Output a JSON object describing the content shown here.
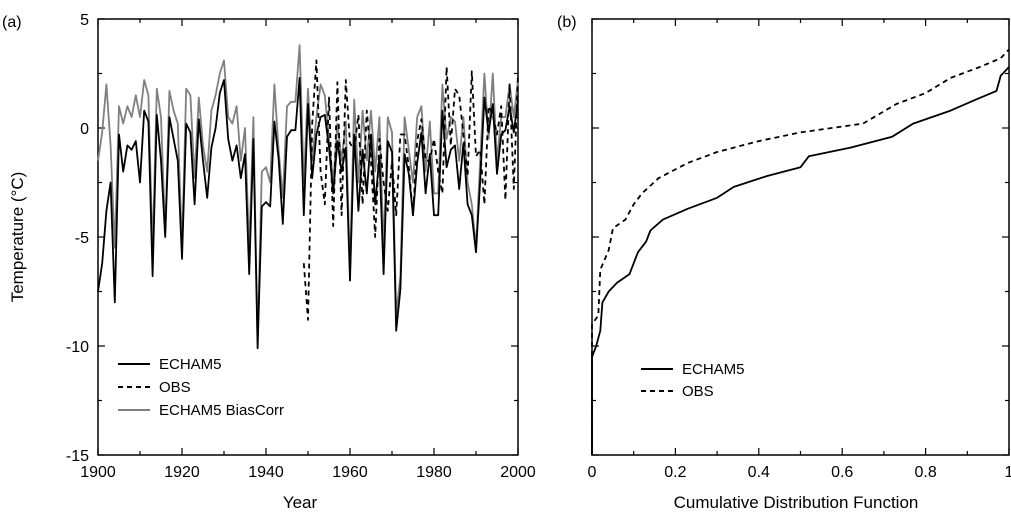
{
  "chart_data": [
    {
      "panel_label": "(a)",
      "type": "line",
      "xlabel": "Year",
      "ylabel": "Temperature (°C)",
      "xlim": [
        1900,
        2000
      ],
      "ylim": [
        -15,
        5
      ],
      "x_ticks": [
        1900,
        1920,
        1940,
        1960,
        1980,
        2000
      ],
      "y_ticks": [
        5,
        0,
        -5,
        -10,
        -15
      ],
      "grid": false,
      "legend_position": "bottom-left",
      "x": [
        1900,
        1901,
        1902,
        1903,
        1904,
        1905,
        1906,
        1907,
        1908,
        1909,
        1910,
        1911,
        1912,
        1913,
        1914,
        1915,
        1916,
        1917,
        1918,
        1919,
        1920,
        1921,
        1922,
        1923,
        1924,
        1925,
        1926,
        1927,
        1928,
        1929,
        1930,
        1931,
        1932,
        1933,
        1934,
        1935,
        1936,
        1937,
        1938,
        1939,
        1940,
        1941,
        1942,
        1943,
        1944,
        1945,
        1946,
        1947,
        1948,
        1949,
        1950,
        1951,
        1952,
        1953,
        1954,
        1955,
        1956,
        1957,
        1958,
        1959,
        1960,
        1961,
        1962,
        1963,
        1964,
        1965,
        1966,
        1967,
        1968,
        1969,
        1970,
        1971,
        1972,
        1973,
        1974,
        1975,
        1976,
        1977,
        1978,
        1979,
        1980,
        1981,
        1982,
        1983,
        1984,
        1985,
        1986,
        1987,
        1988,
        1989,
        1990,
        1991,
        1992,
        1993,
        1994,
        1995,
        1996,
        1997,
        1998,
        1999,
        2000
      ],
      "series": [
        {
          "name": "ECHAM5",
          "color": "#000000",
          "dash": "solid",
          "values": [
            -7.5,
            -6.2,
            -3.8,
            -2.5,
            -8.0,
            -0.3,
            -2.0,
            -0.8,
            -1.0,
            -0.6,
            -2.5,
            0.8,
            0.3,
            -6.8,
            0.6,
            -1.5,
            -5.0,
            0.5,
            -0.5,
            -1.5,
            -6.0,
            0.2,
            -0.2,
            -3.5,
            0.4,
            -1.5,
            -3.2,
            -0.9,
            0.0,
            1.6,
            2.2,
            -0.5,
            -1.5,
            -0.8,
            -2.3,
            -1.2,
            -6.7,
            -0.5,
            -10.1,
            -3.6,
            -3.4,
            -3.6,
            0.3,
            -1.4,
            -4.4,
            -0.4,
            -0.1,
            -0.1,
            2.3,
            -4.0,
            1.1,
            -2.3,
            -0.3,
            0.5,
            0.6,
            -0.9,
            -3.0,
            -0.6,
            -2.0,
            -0.9,
            -7.0,
            -0.3,
            -3.8,
            -1.0,
            -3.0,
            -0.3,
            -3.5,
            -1.3,
            -6.7,
            -0.6,
            -1.1,
            -9.3,
            -7.4,
            -1.2,
            -2.1,
            -4.0,
            -1.6,
            -0.2,
            -3.0,
            -1.2,
            -4.0,
            -4.0,
            0.8,
            -1.8,
            -1.0,
            -0.8,
            -2.8,
            -0.7,
            -3.5,
            -4.0,
            -5.7,
            -2.4,
            -0.8,
            -1.7,
            0.8,
            -2.6,
            -2.1,
            2.1,
            -3.2,
            -4.0,
            -1.5
          ],
          "values_b": [
            1.4,
            -0.2,
            1.1,
            -2.1,
            -0.3,
            -0.1,
            1.0,
            -0.2,
            1.3
          ]
        },
        {
          "name": "OBS",
          "color": "#000000",
          "dash": "dashed",
          "values": [
            null,
            null,
            null,
            null,
            null,
            null,
            null,
            null,
            null,
            null,
            null,
            null,
            null,
            null,
            null,
            null,
            null,
            null,
            null,
            null,
            null,
            null,
            null,
            null,
            null,
            null,
            null,
            null,
            null,
            null,
            null,
            null,
            null,
            null,
            null,
            null,
            null,
            null,
            null,
            null,
            null,
            null,
            null,
            null,
            null,
            null,
            null,
            null,
            null,
            -6.2,
            -8.8,
            0.2,
            3.1,
            -2.0,
            -3.5,
            1.4,
            -4.5,
            2.1,
            -4.0,
            2.2,
            -0.7,
            -1.0,
            0.6,
            -3.5,
            0.8,
            -1.5,
            -5.0,
            -0.5,
            -2.5,
            -3.8,
            -1.5,
            -4.0,
            -0.3,
            -0.3,
            -1.8,
            -4.0,
            -0.6,
            0.4,
            -1.5,
            -1.5,
            -0.5,
            -2.0,
            -3.0,
            2.8,
            -0.8,
            1.8,
            1.5,
            -0.3,
            -2.2,
            2.6,
            -1.3,
            -1.0,
            -3.5,
            1.0,
            0.6,
            -0.3,
            1.0,
            -3.3,
            2.0,
            -2.8,
            2.5
          ]
        },
        {
          "name": "ECHAM5 BiasCorr",
          "color": "#808080",
          "dash": "solid",
          "values": [
            -1.5,
            -0.2,
            2.0,
            -0.8,
            -5.5,
            1.0,
            0.2,
            1.0,
            0.5,
            1.5,
            0.5,
            2.2,
            1.5,
            -5.7,
            1.8,
            0.5,
            -4.8,
            1.7,
            0.8,
            0.2,
            -5.5,
            1.8,
            1.5,
            -2.3,
            1.4,
            -0.8,
            -2.0,
            0.8,
            1.5,
            2.5,
            3.1,
            0.5,
            0.2,
            1.0,
            -1.5,
            0.0,
            -5.5,
            0.5,
            -9.8,
            -2.0,
            -1.8,
            -2.5,
            2.0,
            -1.0,
            -3.2,
            1.0,
            1.2,
            1.2,
            3.8,
            -2.5,
            1.8,
            -1.5,
            0.5,
            2.0,
            1.5,
            -0.5,
            -2.5,
            0.2,
            -1.5,
            0.3,
            -6.5,
            1.3,
            -2.5,
            0.8,
            -1.5,
            0.8,
            -2.0,
            0.5,
            -5.5,
            0.5,
            -0.2,
            -8.5,
            -6.8,
            0.5,
            -1.0,
            -2.5,
            0.5,
            1.0,
            -2.0,
            0.3,
            -3.0,
            -3.0,
            2.0,
            -0.5,
            0.5,
            0.3,
            -1.5,
            0.5,
            -2.5,
            -3.5,
            -5.5,
            -1.5,
            1.0,
            -1.0,
            2.5,
            -1.5,
            -1.0,
            2.5,
            -2.0,
            -2.5,
            2.0
          ],
          "values_b": [
            2.5,
            -0.5,
            2.5,
            -1.5,
            0.5,
            0.5,
            2.0,
            0.5,
            2.2
          ]
        }
      ]
    },
    {
      "panel_label": "(b)",
      "type": "line",
      "xlabel": "Cumulative Distribution Function",
      "ylabel": "",
      "xlim": [
        0,
        1
      ],
      "ylim": [
        -15,
        5
      ],
      "x_ticks": [
        0,
        0.2,
        0.4,
        0.6,
        0.8,
        1
      ],
      "x_tick_labels": [
        "0",
        "0.2",
        "0.4",
        "0.6",
        "0.8",
        "1"
      ],
      "grid": false,
      "legend_position": "bottom-left",
      "series": [
        {
          "name": "ECHAM5",
          "color": "#000000",
          "dash": "solid",
          "points": [
            [
              0.0,
              -15.0
            ],
            [
              0.0,
              -10.5
            ],
            [
              0.01,
              -10.0
            ],
            [
              0.02,
              -9.3
            ],
            [
              0.025,
              -8.0
            ],
            [
              0.04,
              -7.5
            ],
            [
              0.06,
              -7.1
            ],
            [
              0.09,
              -6.7
            ],
            [
              0.11,
              -5.7
            ],
            [
              0.13,
              -5.2
            ],
            [
              0.14,
              -4.7
            ],
            [
              0.17,
              -4.2
            ],
            [
              0.23,
              -3.7
            ],
            [
              0.3,
              -3.2
            ],
            [
              0.34,
              -2.7
            ],
            [
              0.42,
              -2.2
            ],
            [
              0.5,
              -1.8
            ],
            [
              0.52,
              -1.3
            ],
            [
              0.62,
              -0.9
            ],
            [
              0.72,
              -0.4
            ],
            [
              0.77,
              0.2
            ],
            [
              0.86,
              0.8
            ],
            [
              0.92,
              1.3
            ],
            [
              0.97,
              1.7
            ],
            [
              0.98,
              2.4
            ],
            [
              1.0,
              2.8
            ]
          ]
        },
        {
          "name": "OBS",
          "color": "#000000",
          "dash": "dashed",
          "points": [
            [
              0.0,
              -15.0
            ],
            [
              0.0,
              -9.0
            ],
            [
              0.015,
              -8.6
            ],
            [
              0.02,
              -6.5
            ],
            [
              0.04,
              -5.6
            ],
            [
              0.05,
              -4.6
            ],
            [
              0.08,
              -4.2
            ],
            [
              0.1,
              -3.5
            ],
            [
              0.12,
              -3.0
            ],
            [
              0.16,
              -2.3
            ],
            [
              0.23,
              -1.6
            ],
            [
              0.3,
              -1.1
            ],
            [
              0.4,
              -0.6
            ],
            [
              0.5,
              -0.2
            ],
            [
              0.65,
              0.2
            ],
            [
              0.73,
              1.1
            ],
            [
              0.8,
              1.6
            ],
            [
              0.86,
              2.3
            ],
            [
              0.93,
              2.8
            ],
            [
              0.98,
              3.2
            ],
            [
              1.0,
              3.6
            ]
          ]
        }
      ]
    }
  ]
}
